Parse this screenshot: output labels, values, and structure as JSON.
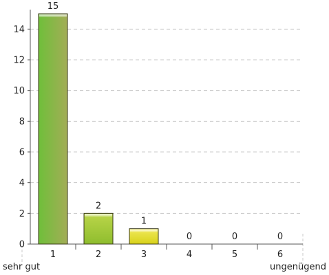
{
  "chart_data": {
    "type": "bar",
    "categories": [
      "1",
      "2",
      "3",
      "4",
      "5",
      "6"
    ],
    "values": [
      15,
      2,
      1,
      0,
      0,
      0
    ],
    "ylim": [
      0,
      15
    ],
    "yticks": [
      "0",
      "2",
      "4",
      "6",
      "8",
      "10",
      "12",
      "14"
    ],
    "title": "",
    "xlabel": "",
    "ylabel": "",
    "grid": true,
    "scale_labels": {
      "best": "sehr gut",
      "worst": "ungenügend"
    },
    "colors": {
      "bar_green": "#7cc242",
      "bar_olive": "#a3ad57",
      "bar_yellow": "#e3df2a",
      "bar_stroke": "#3a3a1a",
      "grid": "#c8c8c8",
      "axis": "#555555"
    }
  }
}
